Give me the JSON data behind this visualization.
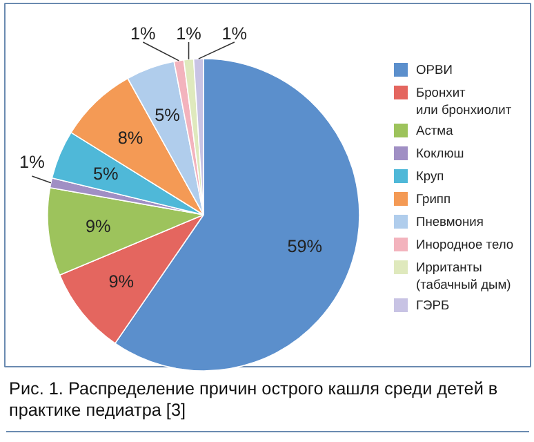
{
  "chart_data": {
    "type": "pie",
    "categories": [
      "ОРВИ",
      "Бронхит\nили бронхиолит",
      "Астма",
      "Коклюш",
      "Круп",
      "Грипп",
      "Пневмония",
      "Инородное тело",
      "Ирританты\n(табачный дым)",
      "ГЭРБ"
    ],
    "values": [
      59,
      9,
      9,
      1,
      5,
      8,
      5,
      1,
      1,
      1
    ],
    "colors": [
      "#5b8fcc",
      "#e4665f",
      "#9dc35c",
      "#a08fc4",
      "#4fb8d8",
      "#f49a55",
      "#b0cdec",
      "#f3b3bd",
      "#dfe9bd",
      "#c8c3e4"
    ],
    "value_labels": [
      "59%",
      "9%",
      "9%",
      "1%",
      "5%",
      "8%",
      "5%",
      "1%",
      "1%",
      "1%"
    ],
    "legend": "right",
    "annotations": [
      "Рис. 1. Распределение причин острого кашля среди детей в практике педиатра [3]"
    ]
  }
}
